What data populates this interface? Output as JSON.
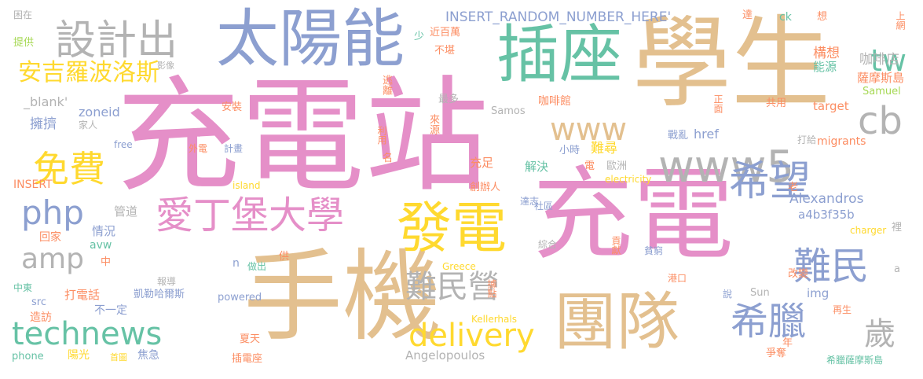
{
  "palette": {
    "pink": "#e58fc8",
    "tan": "#e3c08f",
    "blue": "#8c9fd0",
    "green": "#66c2a5",
    "yellow": "#ffd92f",
    "gray": "#b3b3b3",
    "orange": "#fc8d62",
    "lime": "#a6d854"
  },
  "words": [
    {
      "text": "充電站",
      "color": "pink"
    },
    {
      "text": "充電",
      "color": "pink"
    },
    {
      "text": "學生",
      "color": "tan"
    },
    {
      "text": "手機",
      "color": "tan"
    },
    {
      "text": "太陽能",
      "color": "blue"
    },
    {
      "text": "插座",
      "color": "green"
    },
    {
      "text": "團隊",
      "color": "tan"
    },
    {
      "text": "發電",
      "color": "yellow"
    },
    {
      "text": "設計出",
      "color": "gray"
    },
    {
      "text": "愛丁堡大學",
      "color": "pink"
    },
    {
      "text": "www5",
      "color": "gray"
    },
    {
      "text": "希望",
      "color": "blue"
    },
    {
      "text": "難民",
      "color": "blue"
    },
    {
      "text": "希臘",
      "color": "blue"
    },
    {
      "text": "免費",
      "color": "yellow"
    },
    {
      "text": "php",
      "color": "blue"
    },
    {
      "text": "technews",
      "color": "green"
    },
    {
      "text": "delivery",
      "color": "yellow"
    },
    {
      "text": "難民營",
      "color": "gray"
    },
    {
      "text": "安吉羅波洛斯",
      "color": "yellow"
    },
    {
      "text": "www",
      "color": "tan"
    },
    {
      "text": "amp",
      "color": "gray"
    },
    {
      "text": "cb",
      "color": "gray"
    },
    {
      "text": "tw",
      "color": "green"
    },
    {
      "text": "歲",
      "color": "gray"
    },
    {
      "text": "INSERT_RANDOM_NUMBER_HERE'",
      "color": "blue"
    },
    {
      "text": "構想",
      "color": "orange"
    },
    {
      "text": "咖啡店",
      "color": "gray"
    },
    {
      "text": "能源",
      "color": "green"
    },
    {
      "text": "薩摩斯島",
      "color": "orange"
    },
    {
      "text": "Samuel",
      "color": "lime"
    },
    {
      "text": "共用",
      "color": "orange"
    },
    {
      "text": "target",
      "color": "orange"
    },
    {
      "text": "_blank'",
      "color": "gray"
    },
    {
      "text": "zoneid",
      "color": "blue"
    },
    {
      "text": "擁擠",
      "color": "blue"
    },
    {
      "text": "咖啡館",
      "color": "orange"
    },
    {
      "text": "Samos",
      "color": "gray"
    },
    {
      "text": "href",
      "color": "blue"
    },
    {
      "text": "migrants",
      "color": "orange"
    },
    {
      "text": "打給",
      "color": "gray"
    },
    {
      "text": "戰亂",
      "color": "blue"
    },
    {
      "text": "小時",
      "color": "blue"
    },
    {
      "text": "難尋",
      "color": "yellow"
    },
    {
      "text": "充足",
      "color": "orange"
    },
    {
      "text": "解決",
      "color": "green"
    },
    {
      "text": "電",
      "color": "orange"
    },
    {
      "text": "歐洲",
      "color": "gray"
    },
    {
      "text": "electricity",
      "color": "yellow"
    },
    {
      "text": "創辦人",
      "color": "orange"
    },
    {
      "text": "達志",
      "color": "blue"
    },
    {
      "text": "Alexandros",
      "color": "blue"
    },
    {
      "text": "a4b3f35b",
      "color": "blue"
    },
    {
      "text": "charger",
      "color": "yellow"
    },
    {
      "text": "社區",
      "color": "blue"
    },
    {
      "text": "管道",
      "color": "gray"
    },
    {
      "text": "情況",
      "color": "blue"
    },
    {
      "text": "avw",
      "color": "green"
    },
    {
      "text": "回家",
      "color": "orange"
    },
    {
      "text": "island",
      "color": "yellow"
    },
    {
      "text": "INSERT",
      "color": "orange"
    },
    {
      "text": "家人",
      "color": "gray"
    },
    {
      "text": "安裝",
      "color": "orange"
    },
    {
      "text": "free",
      "color": "blue"
    },
    {
      "text": "外電",
      "color": "orange"
    },
    {
      "text": "計畫",
      "color": "blue"
    },
    {
      "text": "打電話",
      "color": "orange"
    },
    {
      "text": "凱勒哈爾斯",
      "color": "blue"
    },
    {
      "text": "不一定",
      "color": "blue"
    },
    {
      "text": "造訪",
      "color": "orange"
    },
    {
      "text": "報導",
      "color": "gray"
    },
    {
      "text": "做出",
      "color": "green"
    },
    {
      "text": "powered",
      "color": "blue"
    },
    {
      "text": "Greece",
      "color": "yellow"
    },
    {
      "text": "Kellerhals",
      "color": "yellow"
    },
    {
      "text": "Angelopoulos",
      "color": "gray"
    },
    {
      "text": "img",
      "color": "blue"
    },
    {
      "text": "Sun",
      "color": "gray"
    },
    {
      "text": "爭奪",
      "color": "orange"
    },
    {
      "text": "希臘薩摩斯島",
      "color": "green"
    },
    {
      "text": "夏天",
      "color": "orange"
    },
    {
      "text": "插電座",
      "color": "orange"
    },
    {
      "text": "焦急",
      "color": "blue"
    },
    {
      "text": "陽光",
      "color": "yellow"
    },
    {
      "text": "phone",
      "color": "green"
    },
    {
      "text": "首圖",
      "color": "yellow"
    },
    {
      "text": "中東",
      "color": "green"
    },
    {
      "text": "src",
      "color": "blue"
    },
    {
      "text": "提供",
      "color": "lime"
    },
    {
      "text": "困在",
      "color": "gray"
    },
    {
      "text": "影像",
      "color": "gray"
    },
    {
      "text": "逃離",
      "color": "orange"
    },
    {
      "text": "利用",
      "color": "orange"
    },
    {
      "text": "來源",
      "color": "orange"
    },
    {
      "text": "最多",
      "color": "gray"
    },
    {
      "text": "近百萬",
      "color": "orange"
    },
    {
      "text": "不堪",
      "color": "orange"
    },
    {
      "text": "少",
      "color": "green"
    },
    {
      "text": "達",
      "color": "orange"
    },
    {
      "text": "ck",
      "color": "green"
    },
    {
      "text": "想",
      "color": "orange"
    },
    {
      "text": "上網",
      "color": "orange"
    },
    {
      "text": "正面",
      "color": "orange"
    },
    {
      "text": "綜合",
      "color": "gray"
    },
    {
      "text": "貢獻",
      "color": "orange"
    },
    {
      "text": "貧窮",
      "color": "blue"
    },
    {
      "text": "港口",
      "color": "orange"
    },
    {
      "text": "說",
      "color": "blue"
    },
    {
      "text": "再生",
      "color": "orange"
    },
    {
      "text": "據點",
      "color": "orange"
    },
    {
      "text": "改變",
      "color": "orange"
    },
    {
      "text": "年",
      "color": "orange"
    },
    {
      "text": "老",
      "color": "orange"
    },
    {
      "text": "名",
      "color": "orange"
    },
    {
      "text": "中",
      "color": "orange"
    },
    {
      "text": "供",
      "color": "orange"
    },
    {
      "text": "n",
      "color": "blue"
    },
    {
      "text": "裡",
      "color": "gray"
    },
    {
      "text": "a",
      "color": "gray"
    }
  ]
}
